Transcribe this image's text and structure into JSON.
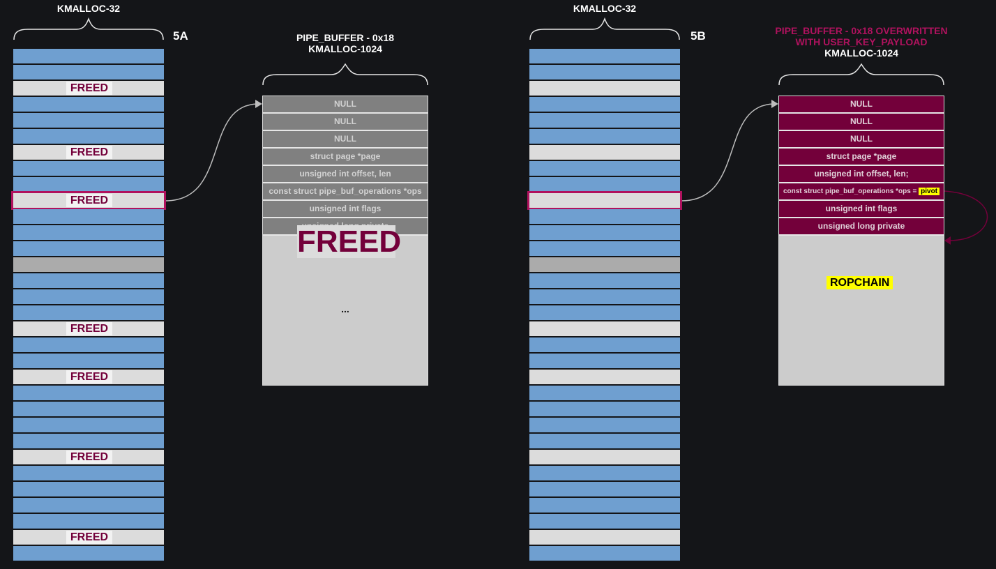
{
  "panel_a": {
    "slab_title": "KMALLOC-32",
    "step_label": "5A",
    "freed_label": "FREED",
    "pipe_title_line1": "PIPE_BUFFER - 0x18",
    "pipe_title_line2": "KMALLOC-1024",
    "fields": [
      "NULL",
      "NULL",
      "NULL",
      "struct page *page",
      "unsigned int offset, len",
      "const struct pipe_buf_operations *ops",
      "unsigned int flags",
      "unsigned long private"
    ],
    "overlay_label": "FREED",
    "ellipsis": "..."
  },
  "panel_b": {
    "slab_title": "KMALLOC-32",
    "step_label": "5B",
    "pipe_title_line1": "PIPE_BUFFER - 0x18 OVERWRITTEN",
    "pipe_title_line2": "WITH USER_KEY_PAYLOAD",
    "pipe_title_line3": "KMALLOC-1024",
    "fields": [
      "NULL",
      "NULL",
      "NULL",
      "struct page *page",
      "unsigned int offset, len;",
      "const struct pipe_buf_operations *ops = ",
      "unsigned int flags",
      "unsigned long private"
    ],
    "pivot_label": "pivot",
    "ropchain_label": "ROPCHAIN"
  },
  "slab_rows": [
    "used",
    "used",
    "freed",
    "used",
    "used",
    "used",
    "freed",
    "used",
    "used",
    "target",
    "used",
    "used",
    "used",
    "gray",
    "used",
    "used",
    "used",
    "freed",
    "used",
    "used",
    "freed",
    "used",
    "used",
    "used",
    "used",
    "freed",
    "used",
    "used",
    "used",
    "used",
    "freed",
    "used"
  ],
  "colors": {
    "used": "#6f9fd0",
    "freed": "#dcdcdc",
    "maroon": "#73003a",
    "highlight": "#b0125e",
    "background": "#141518",
    "pivot": "#ffff00"
  }
}
